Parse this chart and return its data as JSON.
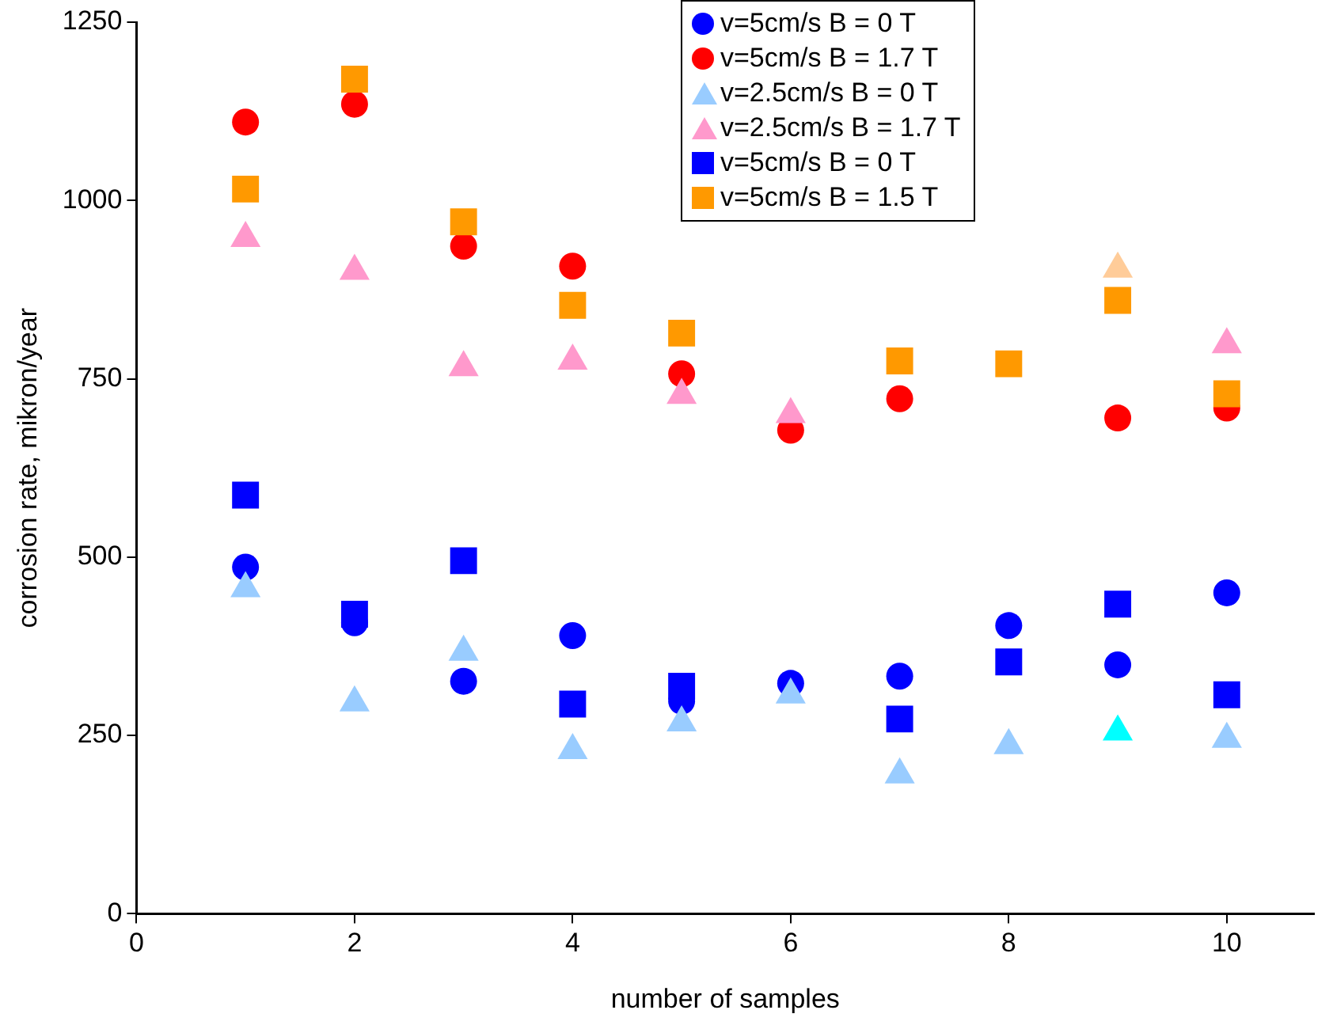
{
  "chart_data": {
    "type": "scatter",
    "xlabel": "number of samples",
    "ylabel": "corrosion rate, mikron/year",
    "x": [
      1,
      2,
      3,
      4,
      5,
      6,
      7,
      8,
      9,
      10
    ],
    "xlim": [
      0,
      10.8
    ],
    "xticks": [
      0,
      2,
      4,
      6,
      8,
      10
    ],
    "ylim": [
      0,
      1250
    ],
    "yticks": [
      0,
      250,
      500,
      750,
      1000,
      1250
    ],
    "grid": false,
    "legend": "top right",
    "series": [
      {
        "name": "v=5cm/s B = 0 T",
        "color": "#0000ff",
        "marker": "circle",
        "values": [
          486,
          408,
          326,
          390,
          298,
          323,
          333,
          404,
          349,
          450
        ]
      },
      {
        "name": "v=5cm/s B = 1.7 T",
        "color": "#ff0000",
        "marker": "circle",
        "values": [
          1110,
          1135,
          936,
          908,
          757,
          678,
          722,
          null,
          695,
          709
        ]
      },
      {
        "name": "v=2.5cm/s B = 0 T",
        "color": "#99ccff",
        "marker": "triangle",
        "colors": [
          "#99ccff",
          "#99ccff",
          "#99ccff",
          "#99ccff",
          "#99ccff",
          "#99ccff",
          "#99ccff",
          "#99ccff",
          "#00ffff",
          "#99ccff"
        ],
        "values": [
          456,
          296,
          367,
          229,
          268,
          307,
          195,
          236,
          255,
          245
        ]
      },
      {
        "name": "v=2.5cm/s B = 1.7 T",
        "color": "#ff99cc",
        "marker": "triangle",
        "colors": [
          "#ff99cc",
          "#ff99cc",
          "#ff99cc",
          "#ff99cc",
          "#ff99cc",
          "#ff99cc",
          "#ff99cc",
          "#ff99cc",
          "#ffcc99",
          "#ff99cc"
        ],
        "values": [
          947,
          901,
          766,
          775,
          727,
          700,
          null,
          null,
          904,
          798
        ]
      },
      {
        "name": "v=5cm/s B = 0 T",
        "color": "#0000ff",
        "marker": "square",
        "values": [
          587,
          420,
          495,
          294,
          319,
          null,
          273,
          353,
          434,
          307
        ]
      },
      {
        "name": "v=5cm/s B = 1.5 T",
        "color": "#ff9900",
        "marker": "square",
        "values": [
          1016,
          1170,
          970,
          853,
          814,
          null,
          775,
          771,
          860,
          729
        ]
      }
    ]
  }
}
